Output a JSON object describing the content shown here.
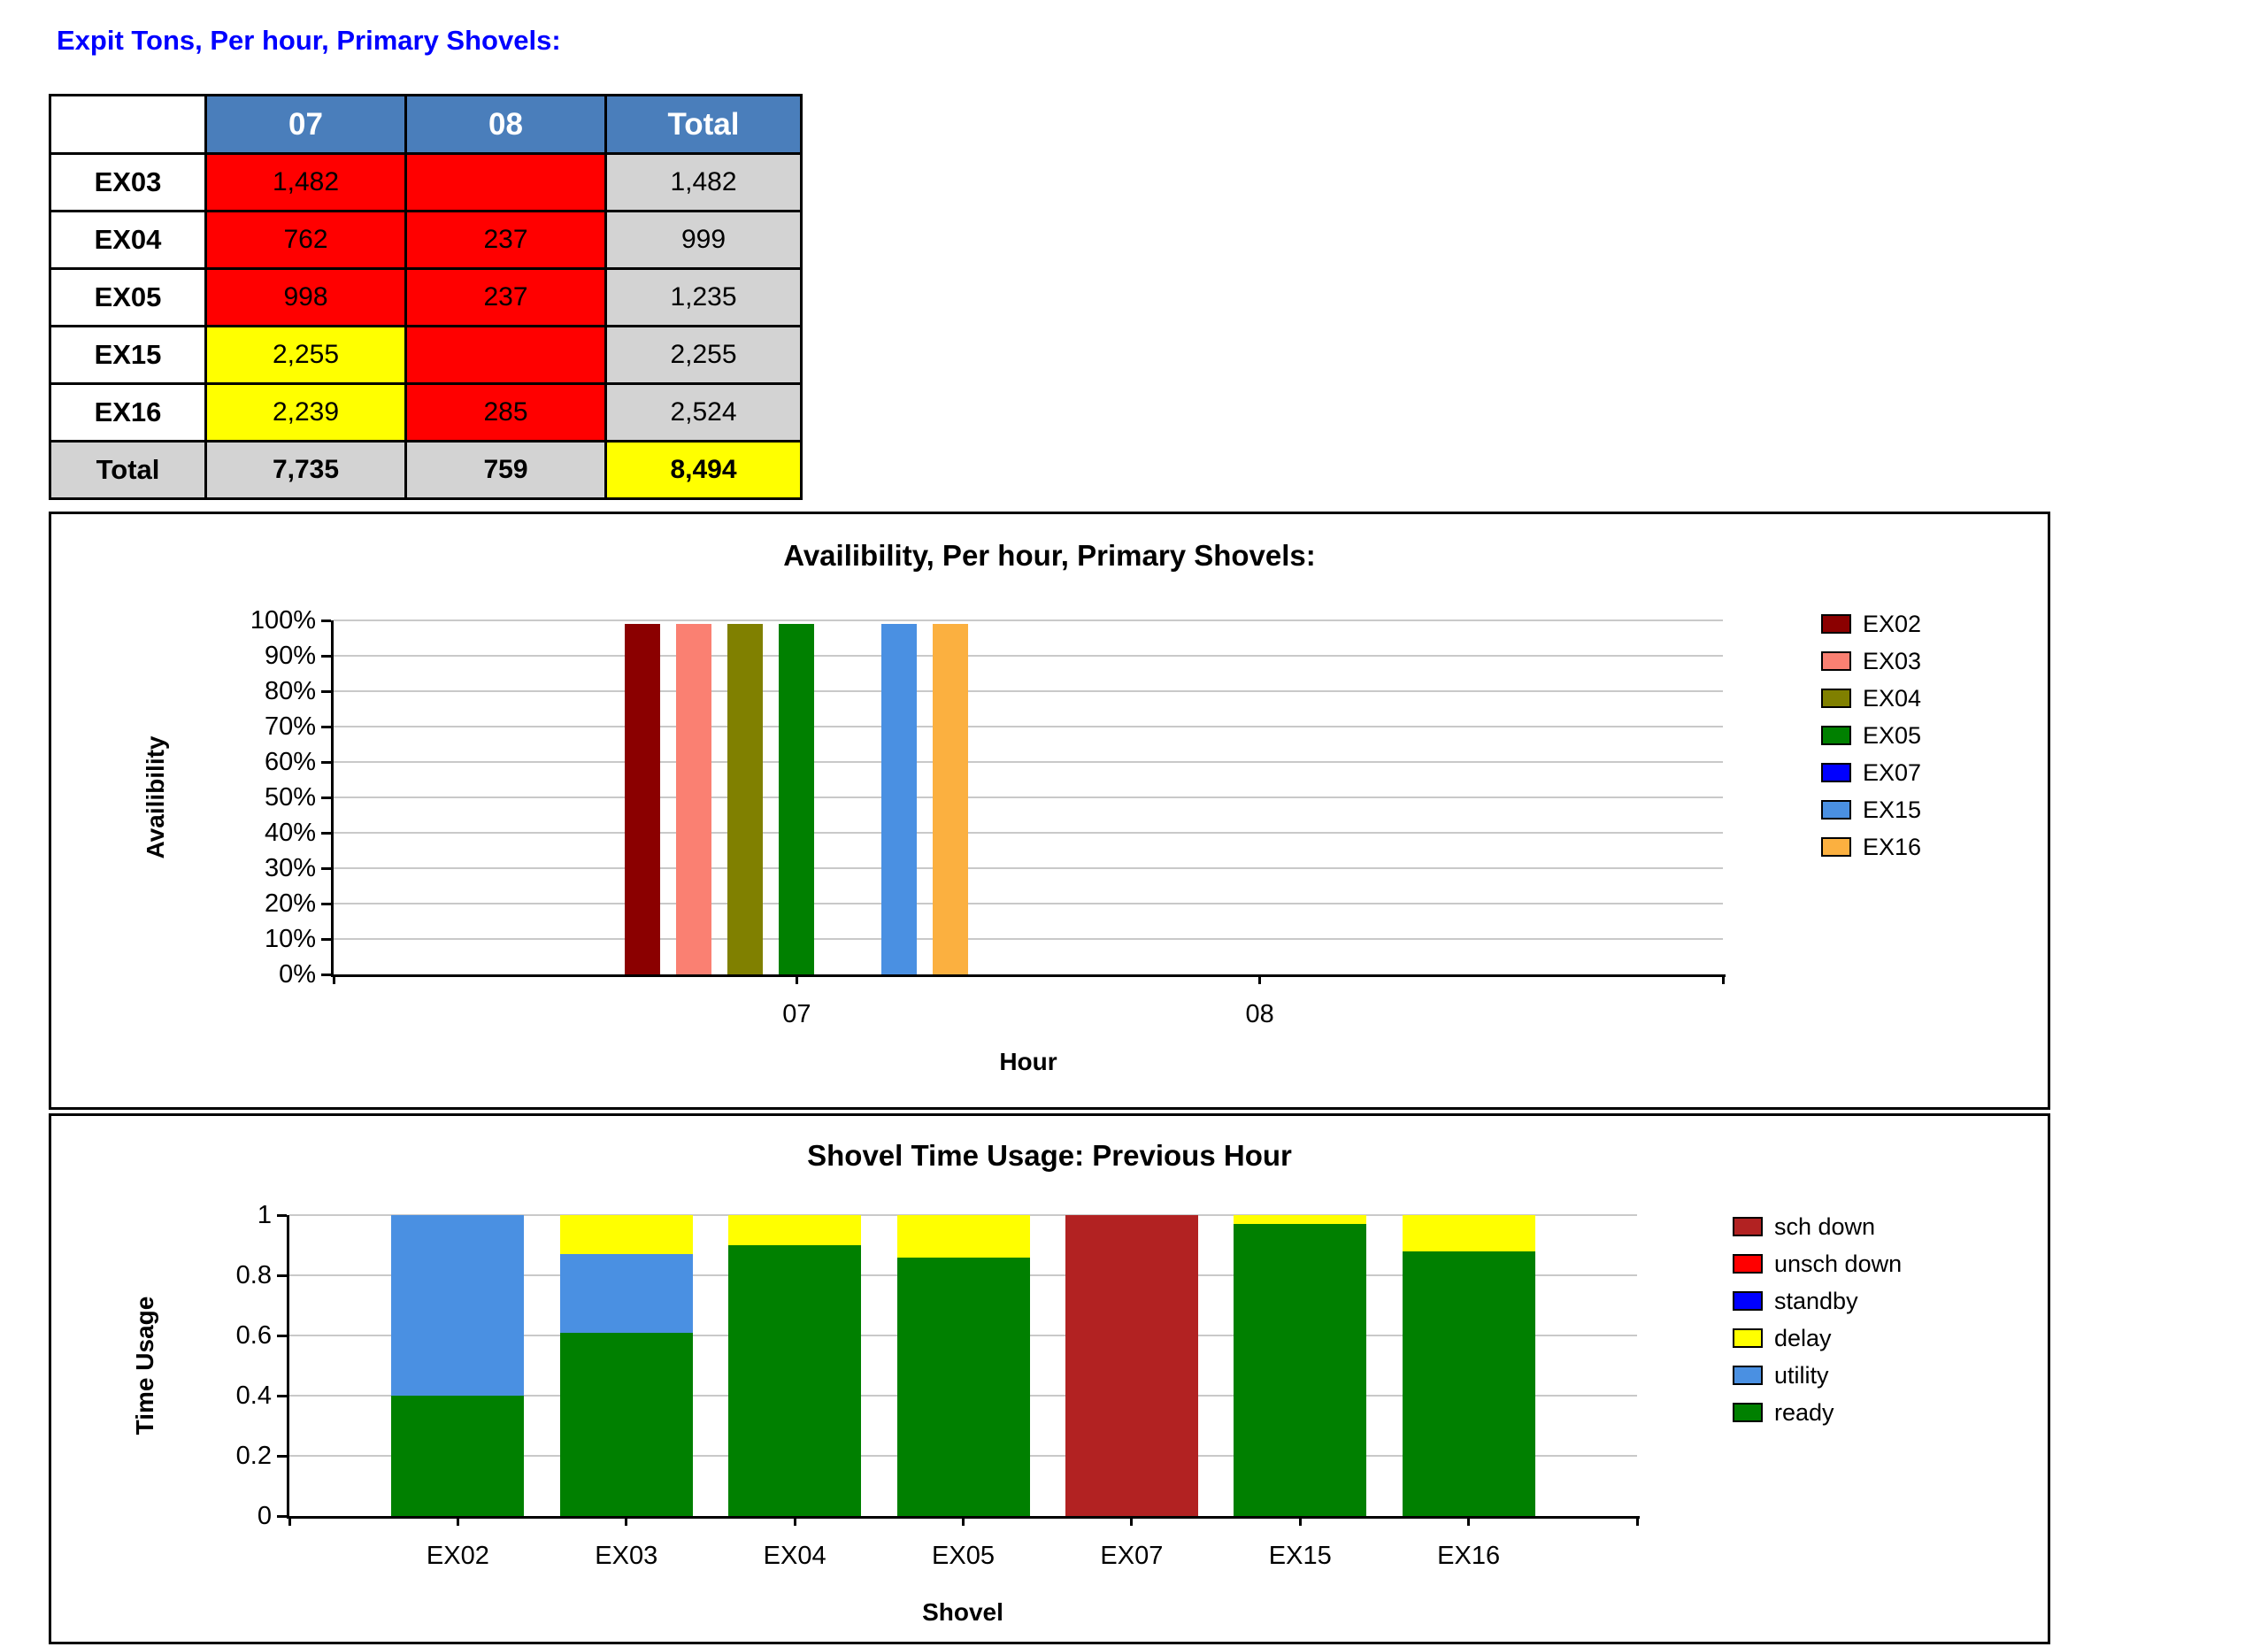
{
  "page_title": "Expit Tons, Per hour, Primary Shovels:",
  "palette": {
    "title_blue": "#0000FF",
    "header_blue": "#4A7EBB",
    "red": "#FF0000",
    "yellow": "#FFFF00",
    "gray": "#D3D3D3",
    "white": "#FFFFFF"
  },
  "tons_table": {
    "columns": [
      "07",
      "08",
      "Total"
    ],
    "rows": [
      {
        "label": "EX03",
        "cells": [
          {
            "text": "1,482",
            "bg": "red"
          },
          {
            "text": "",
            "bg": "red"
          },
          {
            "text": "1,482",
            "bg": "gray"
          }
        ]
      },
      {
        "label": "EX04",
        "cells": [
          {
            "text": "762",
            "bg": "red"
          },
          {
            "text": "237",
            "bg": "red"
          },
          {
            "text": "999",
            "bg": "gray"
          }
        ]
      },
      {
        "label": "EX05",
        "cells": [
          {
            "text": "998",
            "bg": "red"
          },
          {
            "text": "237",
            "bg": "red"
          },
          {
            "text": "1,235",
            "bg": "gray"
          }
        ]
      },
      {
        "label": "EX15",
        "cells": [
          {
            "text": "2,255",
            "bg": "yellow"
          },
          {
            "text": "",
            "bg": "red"
          },
          {
            "text": "2,255",
            "bg": "gray"
          }
        ]
      },
      {
        "label": "EX16",
        "cells": [
          {
            "text": "2,239",
            "bg": "yellow"
          },
          {
            "text": "285",
            "bg": "red"
          },
          {
            "text": "2,524",
            "bg": "gray"
          }
        ]
      },
      {
        "label": "Total",
        "label_bg": "gray",
        "cells": [
          {
            "text": "7,735",
            "bg": "gray",
            "bold": true
          },
          {
            "text": "759",
            "bg": "gray",
            "bold": true
          },
          {
            "text": "8,494",
            "bg": "yellow",
            "bold": true
          }
        ]
      }
    ]
  },
  "chart_data": [
    {
      "type": "bar",
      "title": "Availibility, Per hour, Primary Shovels:",
      "xlabel": "Hour",
      "ylabel": "Availibility",
      "ylim": [
        0,
        1
      ],
      "grid": true,
      "legend_position": "right",
      "legend_order": "normal",
      "y_ticks": [
        {
          "v": 0,
          "label": "0%"
        },
        {
          "v": 0.1,
          "label": "10%"
        },
        {
          "v": 0.2,
          "label": "20%"
        },
        {
          "v": 0.3,
          "label": "30%"
        },
        {
          "v": 0.4,
          "label": "40%"
        },
        {
          "v": 0.5,
          "label": "50%"
        },
        {
          "v": 0.6,
          "label": "60%"
        },
        {
          "v": 0.7,
          "label": "70%"
        },
        {
          "v": 0.8,
          "label": "80%"
        },
        {
          "v": 0.9,
          "label": "90%"
        },
        {
          "v": 1,
          "label": "100%"
        }
      ],
      "categories": [
        "07",
        "08"
      ],
      "series": [
        {
          "name": "EX02",
          "color": "#8B0000",
          "values": [
            0.99,
            null
          ]
        },
        {
          "name": "EX03",
          "color": "#FA8072",
          "values": [
            0.99,
            null
          ]
        },
        {
          "name": "EX04",
          "color": "#808000",
          "values": [
            0.99,
            null
          ]
        },
        {
          "name": "EX05",
          "color": "#008000",
          "values": [
            0.99,
            null
          ]
        },
        {
          "name": "EX07",
          "color": "#0000FF",
          "values": [
            null,
            null
          ]
        },
        {
          "name": "EX15",
          "color": "#4A90E2",
          "values": [
            0.99,
            null
          ]
        },
        {
          "name": "EX16",
          "color": "#FBB040",
          "values": [
            0.99,
            null
          ]
        }
      ]
    },
    {
      "type": "stacked_bar",
      "title": "Shovel Time Usage: Previous Hour",
      "xlabel": "Shovel",
      "ylabel": "Time Usage",
      "ylim": [
        0,
        1
      ],
      "grid": true,
      "legend_position": "right",
      "legend_order": "reverse",
      "y_ticks": [
        {
          "v": 0,
          "label": "0"
        },
        {
          "v": 0.2,
          "label": "0.2"
        },
        {
          "v": 0.4,
          "label": "0.4"
        },
        {
          "v": 0.6,
          "label": "0.6"
        },
        {
          "v": 0.8,
          "label": "0.8"
        },
        {
          "v": 1,
          "label": "1"
        }
      ],
      "categories": [
        "EX02",
        "EX03",
        "EX04",
        "EX05",
        "EX07",
        "EX15",
        "EX16"
      ],
      "series": [
        {
          "name": "ready",
          "color": "#008000",
          "values": [
            0.4,
            0.61,
            0.9,
            0.86,
            0,
            0.97,
            0.88
          ]
        },
        {
          "name": "utility",
          "color": "#4A90E2",
          "values": [
            0.6,
            0.26,
            0,
            0,
            0,
            0,
            0
          ]
        },
        {
          "name": "delay",
          "color": "#FFFF00",
          "values": [
            0,
            0.13,
            0.1,
            0.14,
            0,
            0.03,
            0.12
          ]
        },
        {
          "name": "standby",
          "color": "#0000FF",
          "values": [
            0,
            0,
            0,
            0,
            0,
            0,
            0
          ]
        },
        {
          "name": "unsch down",
          "color": "#FF0000",
          "values": [
            0,
            0,
            0,
            0,
            0,
            0,
            0
          ]
        },
        {
          "name": "sch down",
          "color": "#B22222",
          "values": [
            0,
            0,
            0,
            0,
            1,
            0,
            0
          ]
        }
      ]
    }
  ]
}
